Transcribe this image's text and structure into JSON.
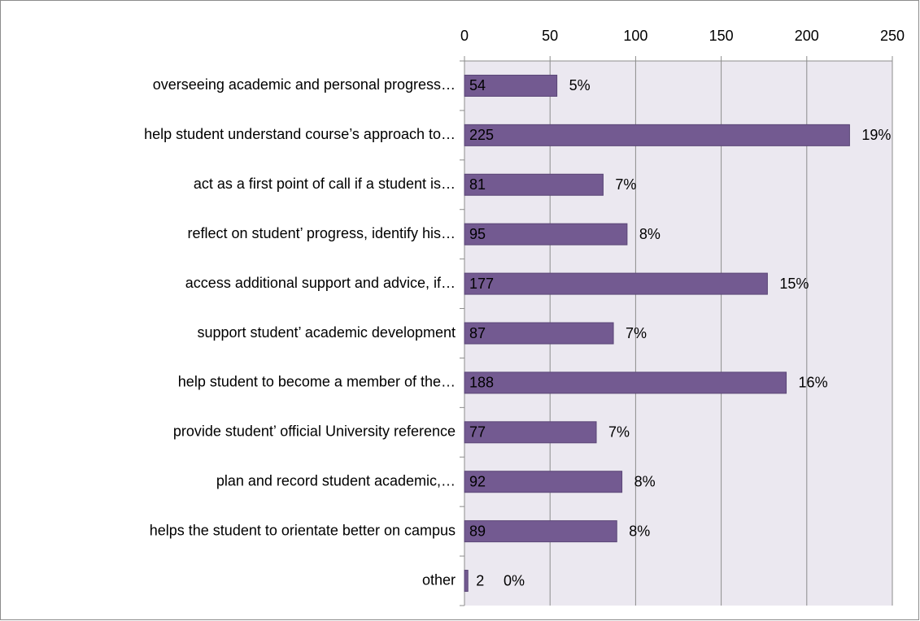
{
  "chart_data": {
    "type": "bar",
    "orientation": "horizontal",
    "categories": [
      "overseeing academic and personal progress…",
      "help student understand course’s approach to…",
      "act as a first point of call if a student is…",
      "reflect on student’ progress, identify his…",
      "access additional support and advice, if…",
      "support student’ academic development",
      "help student to become a member of the…",
      "provide student’ official University reference",
      "plan and record student academic,…",
      "helps the student to orientate better on campus",
      "other"
    ],
    "values": [
      54,
      225,
      81,
      95,
      177,
      87,
      188,
      77,
      92,
      89,
      2
    ],
    "percent_labels": [
      "5%",
      "19%",
      "7%",
      "8%",
      "15%",
      "7%",
      "16%",
      "7%",
      "8%",
      "8%",
      "0%"
    ],
    "color": "#735a91",
    "xlim": [
      0,
      250
    ],
    "xticks": [
      0,
      50,
      100,
      150,
      200,
      250
    ],
    "grid": true
  }
}
